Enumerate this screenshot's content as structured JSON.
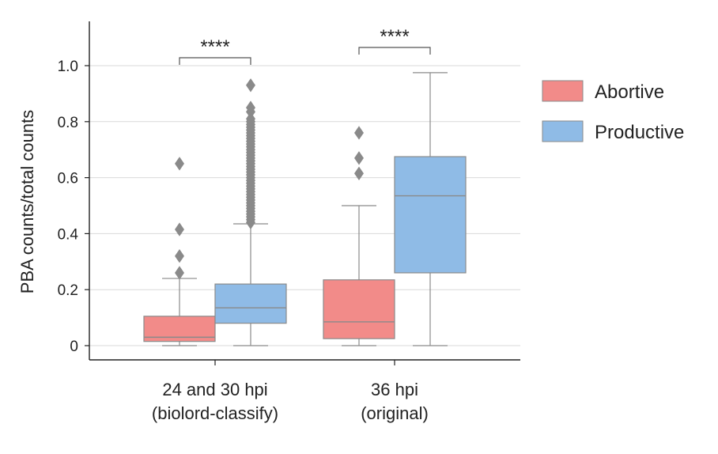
{
  "chart_data": {
    "type": "box",
    "ylabel": "PBA counts/total counts",
    "xlabel": "",
    "ylim": [
      -0.05,
      1.15
    ],
    "yticks": [
      0,
      0.2,
      0.4,
      0.6,
      0.8,
      1.0
    ],
    "ytick_labels": [
      "0",
      "0.2",
      "0.4",
      "0.6",
      "0.8",
      "1.0"
    ],
    "grid": "horizontal",
    "legend_position": "right",
    "groups": [
      {
        "label_line1": "24 and 30 hpi",
        "label_line2": "(biolord-classify)",
        "significance": "****"
      },
      {
        "label_line1": "36 hpi",
        "label_line2": "(original)",
        "significance": "****"
      }
    ],
    "series": [
      {
        "name": "Abortive",
        "color": "#f28b89",
        "boxes": [
          {
            "whislo": 0.0,
            "q1": 0.015,
            "med": 0.03,
            "q3": 0.105,
            "whishi": 0.24,
            "fliers": [
              0.26,
              0.32,
              0.415,
              0.65
            ]
          },
          {
            "whislo": 0.0,
            "q1": 0.025,
            "med": 0.085,
            "q3": 0.235,
            "whishi": 0.5,
            "fliers": [
              0.615,
              0.67,
              0.76
            ]
          }
        ]
      },
      {
        "name": "Productive",
        "color": "#8fbbe6",
        "boxes": [
          {
            "whislo": 0.0,
            "q1": 0.08,
            "med": 0.135,
            "q3": 0.22,
            "whishi": 0.435,
            "fliers": [
              0.44,
              0.45,
              0.46,
              0.47,
              0.48,
              0.49,
              0.5,
              0.51,
              0.52,
              0.53,
              0.54,
              0.55,
              0.56,
              0.57,
              0.58,
              0.59,
              0.6,
              0.61,
              0.62,
              0.63,
              0.64,
              0.65,
              0.66,
              0.67,
              0.68,
              0.69,
              0.7,
              0.71,
              0.72,
              0.73,
              0.74,
              0.75,
              0.76,
              0.77,
              0.78,
              0.79,
              0.8,
              0.81,
              0.835,
              0.85,
              0.93
            ]
          },
          {
            "whislo": 0.0,
            "q1": 0.26,
            "med": 0.535,
            "q3": 0.675,
            "whishi": 0.975,
            "fliers": []
          }
        ]
      }
    ]
  }
}
